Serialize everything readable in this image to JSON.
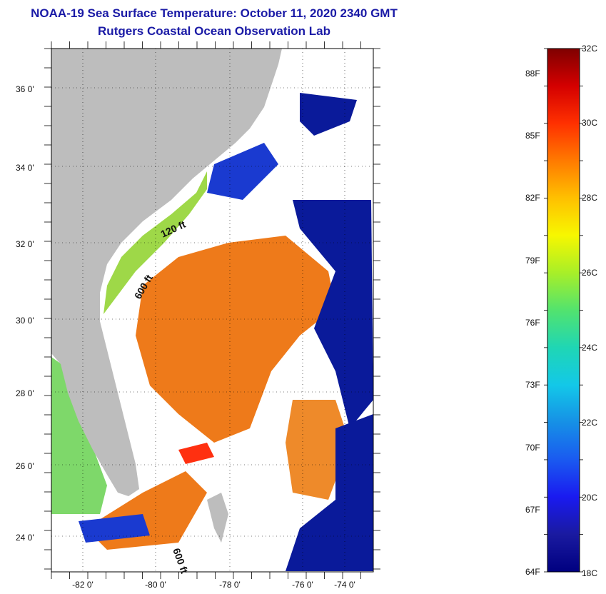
{
  "title_line1": "NOAA-19 Sea Surface Temperature:  October 11, 2020 2340 GMT",
  "title_line2": "Rutgers Coastal Ocean Observation Lab",
  "lat_labels": [
    "36 0'",
    "34 0'",
    "32 0'",
    "30 0'",
    "28 0'",
    "26 0'",
    "24 0'"
  ],
  "lon_labels": [
    "-82 0'",
    "-80 0'",
    "-78 0'",
    "-76 0'",
    "-74 0'"
  ],
  "contour_labels": [
    "120 ft",
    "600 ft",
    "600 ft"
  ],
  "colorbar": {
    "fahrenheit": [
      "88F",
      "85F",
      "82F",
      "79F",
      "76F",
      "73F",
      "70F",
      "67F",
      "64F"
    ],
    "celsius": [
      "32C",
      "30C",
      "28C",
      "26C",
      "24C",
      "22C",
      "20C",
      "18C"
    ],
    "colors": [
      "#7f0000",
      "#d40000",
      "#ff3000",
      "#ff7a00",
      "#ffc000",
      "#f7f700",
      "#a8ef28",
      "#52e36e",
      "#1fd6b4",
      "#13c8e8",
      "#1690e6",
      "#1a5af0",
      "#1a1af0",
      "#1a1aa0",
      "#000080"
    ]
  },
  "legend_colors": {
    "land": "#bdbdbd",
    "cloud": "#ffffff",
    "cold": "#0a1a9a",
    "warm": "#ee7a1a",
    "hot": "#ff3010",
    "shelf": "#9ed848"
  }
}
